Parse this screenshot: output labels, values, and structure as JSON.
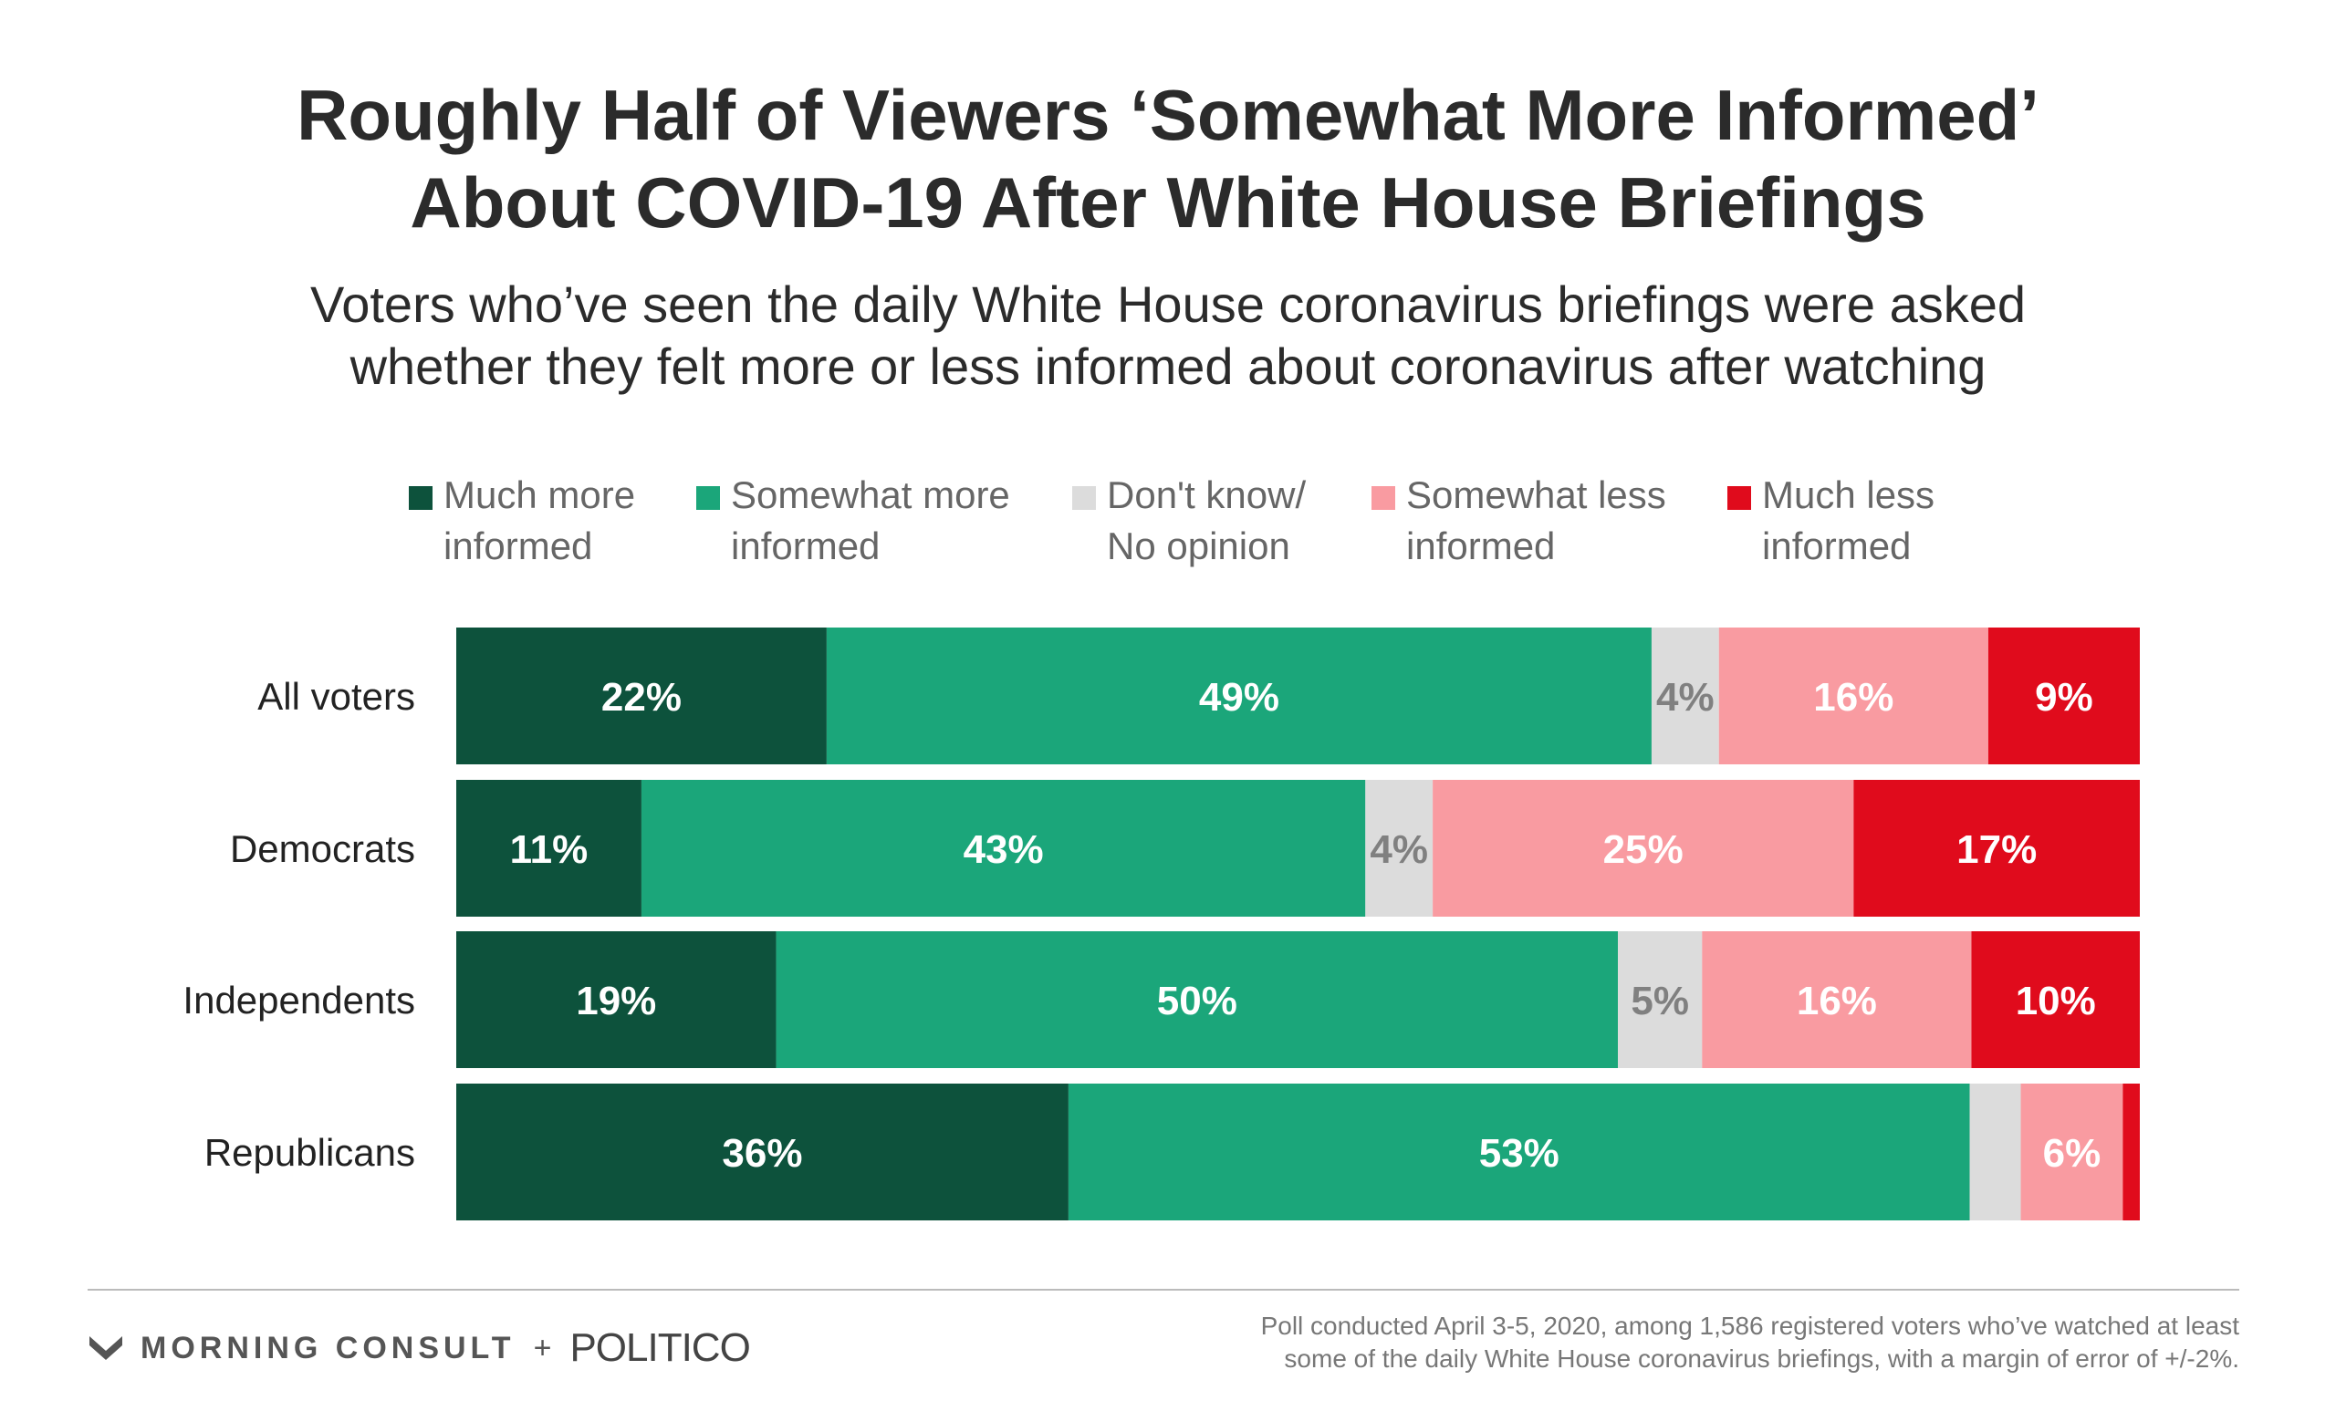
{
  "title_lines": [
    "Roughly Half of Viewers ‘Somewhat More Informed’",
    "About COVID-19 After White House Briefings"
  ],
  "subtitle_lines": [
    "Voters who’ve seen the daily White House coronavirus briefings were asked",
    "whether they felt more or less informed about coronavirus after watching"
  ],
  "legend": [
    {
      "lines": [
        "Much more",
        "informed"
      ],
      "color": "#0d523c"
    },
    {
      "lines": [
        "Somewhat more",
        "informed"
      ],
      "color": "#1ba67a"
    },
    {
      "lines": [
        "Don't know/",
        "No opinion"
      ],
      "color": "#dcdcdc"
    },
    {
      "lines": [
        "Somewhat less",
        "informed"
      ],
      "color": "#f99ba1"
    },
    {
      "lines": [
        "Much less",
        "informed"
      ],
      "color": "#e00b1c"
    }
  ],
  "chart_data": {
    "type": "bar",
    "orientation": "horizontal",
    "stacked": true,
    "categories": [
      "All voters",
      "Democrats",
      "Independents",
      "Republicans"
    ],
    "series": [
      {
        "name": "Much more informed",
        "values": [
          22,
          11,
          19,
          36
        ],
        "labels": [
          "22%",
          "11%",
          "19%",
          "36%"
        ]
      },
      {
        "name": "Somewhat more informed",
        "values": [
          49,
          43,
          50,
          53
        ],
        "labels": [
          "49%",
          "43%",
          "50%",
          "53%"
        ]
      },
      {
        "name": "Don't know/ No opinion",
        "values": [
          4,
          4,
          5,
          3
        ],
        "labels": [
          "4%",
          "4%",
          "5%",
          ""
        ]
      },
      {
        "name": "Somewhat less informed",
        "values": [
          16,
          25,
          16,
          6
        ],
        "labels": [
          "16%",
          "25%",
          "16%",
          "6%"
        ]
      },
      {
        "name": "Much less informed",
        "values": [
          9,
          17,
          10,
          1
        ],
        "labels": [
          "9%",
          "17%",
          "10%",
          ""
        ]
      }
    ],
    "label_colors": [
      "#ffffff",
      "#ffffff",
      "#808080",
      "#ffffff",
      "#ffffff"
    ],
    "xlim": [
      0,
      100
    ],
    "grid": false,
    "legend_position": "top"
  },
  "footer": {
    "brand": "MORNING CONSULT",
    "plus": "+",
    "partner": "POLITICO",
    "source_lines": [
      "Poll conducted April 3-5, 2020, among 1,586 registered voters who’ve watched at least",
      "some of the daily White House coronavirus briefings, with a margin of error of +/-2%."
    ]
  }
}
